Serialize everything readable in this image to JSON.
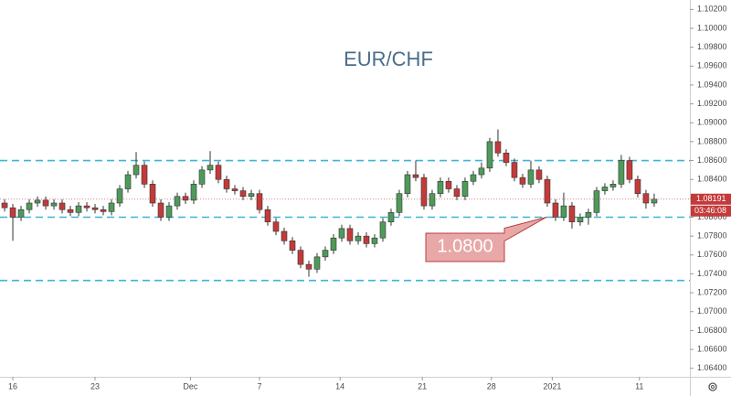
{
  "chart_data": {
    "type": "candlestick",
    "title": "EUR/CHF",
    "x": [
      -0.5,
      0,
      0.5,
      1,
      1.5,
      2,
      2.5,
      3,
      3.5,
      4,
      4.5,
      5,
      5.5,
      6,
      6.5,
      7,
      7.5,
      8,
      8.5,
      9,
      9.5,
      10,
      10.5,
      11,
      11.5,
      12,
      12.5,
      13,
      13.5,
      14,
      14.5,
      15,
      15.5,
      16,
      16.5,
      17,
      17.5,
      18,
      18.5,
      19,
      19.5,
      20,
      20.5,
      21,
      21.5,
      22,
      22.5,
      23,
      23.5,
      24,
      24.5,
      25,
      25.5,
      26,
      26.5,
      27,
      27.5,
      28,
      28.5,
      29,
      29.5,
      30,
      30.5,
      31,
      31.5,
      32,
      32.5,
      33,
      33.5,
      34,
      34.5,
      35,
      35.5,
      36,
      36.5,
      37,
      37.5,
      38,
      38.5,
      39
    ],
    "open": [
      1.0815,
      1.081,
      1.08,
      1.0808,
      1.0815,
      1.0818,
      1.0812,
      1.0815,
      1.0808,
      1.0805,
      1.0812,
      1.081,
      1.0808,
      1.0806,
      1.0815,
      1.083,
      1.0845,
      1.0855,
      1.0835,
      1.0815,
      1.08,
      1.0812,
      1.0822,
      1.0818,
      1.0835,
      1.085,
      1.0855,
      1.084,
      1.083,
      1.0828,
      1.0822,
      1.0825,
      1.0808,
      1.0795,
      1.0785,
      1.0775,
      1.0765,
      1.075,
      1.0745,
      1.0758,
      1.0765,
      1.0778,
      1.0788,
      1.0775,
      1.078,
      1.0772,
      1.0778,
      1.0795,
      1.0805,
      1.0825,
      1.0845,
      1.0842,
      1.0812,
      1.0825,
      1.0838,
      1.083,
      1.0822,
      1.0838,
      1.0845,
      1.0852,
      1.088,
      1.0868,
      1.0858,
      1.0842,
      1.0835,
      1.085,
      1.084,
      1.0815,
      1.08,
      1.0812,
      1.0795,
      1.08,
      1.0805,
      1.0828,
      1.0832,
      1.0835,
      1.086,
      1.084,
      1.0825,
      1.0815
    ],
    "high": [
      1.0819,
      1.0814,
      1.0812,
      1.0819,
      1.0822,
      1.0822,
      1.0819,
      1.0819,
      1.0812,
      1.0816,
      1.0816,
      1.0814,
      1.0812,
      1.0819,
      1.0834,
      1.0849,
      1.0869,
      1.0859,
      1.0839,
      1.0819,
      1.0816,
      1.0826,
      1.0826,
      1.0839,
      1.0854,
      1.087,
      1.0859,
      1.0844,
      1.0834,
      1.0832,
      1.0829,
      1.0829,
      1.0812,
      1.0799,
      1.0789,
      1.0779,
      1.0769,
      1.0754,
      1.0762,
      1.0769,
      1.0782,
      1.0792,
      1.0792,
      1.0784,
      1.0784,
      1.0782,
      1.0799,
      1.0809,
      1.0829,
      1.0849,
      1.086,
      1.0846,
      1.0829,
      1.0842,
      1.0842,
      1.0834,
      1.0842,
      1.0849,
      1.0858,
      1.0884,
      1.0893,
      1.0872,
      1.0862,
      1.0846,
      1.086,
      1.0854,
      1.0844,
      1.0819,
      1.0826,
      1.0816,
      1.0804,
      1.0809,
      1.0832,
      1.0836,
      1.0839,
      1.0866,
      1.0864,
      1.0844,
      1.0829,
      1.0825
    ],
    "low": [
      1.0806,
      1.0775,
      1.0796,
      1.0804,
      1.0811,
      1.0808,
      1.0808,
      1.0804,
      1.0801,
      1.0801,
      1.0806,
      1.0804,
      1.0802,
      1.0802,
      1.0811,
      1.0826,
      1.0841,
      1.0831,
      1.0811,
      1.0796,
      1.0796,
      1.0808,
      1.0814,
      1.0814,
      1.0831,
      1.0846,
      1.0836,
      1.0826,
      1.0824,
      1.0818,
      1.0818,
      1.0804,
      1.0791,
      1.0781,
      1.0771,
      1.0761,
      1.0746,
      1.0737,
      1.0741,
      1.0754,
      1.0761,
      1.0774,
      1.0771,
      1.0771,
      1.0768,
      1.0768,
      1.0774,
      1.0791,
      1.0801,
      1.0821,
      1.0838,
      1.0808,
      1.0808,
      1.0821,
      1.0826,
      1.0818,
      1.0818,
      1.0834,
      1.0841,
      1.0848,
      1.0864,
      1.0854,
      1.0838,
      1.0831,
      1.0831,
      1.0836,
      1.0811,
      1.0796,
      1.0796,
      1.0788,
      1.0791,
      1.0792,
      1.0801,
      1.0824,
      1.0828,
      1.0831,
      1.0836,
      1.0821,
      1.0809,
      1.0811
    ],
    "close": [
      1.081,
      1.08,
      1.0808,
      1.0815,
      1.0818,
      1.0812,
      1.0815,
      1.0808,
      1.0805,
      1.0812,
      1.081,
      1.0808,
      1.0806,
      1.0815,
      1.083,
      1.0845,
      1.0855,
      1.0835,
      1.0815,
      1.08,
      1.0812,
      1.0822,
      1.0818,
      1.0835,
      1.085,
      1.0855,
      1.084,
      1.083,
      1.0828,
      1.0822,
      1.0825,
      1.0808,
      1.0795,
      1.0785,
      1.0775,
      1.0765,
      1.075,
      1.0745,
      1.0758,
      1.0765,
      1.0778,
      1.0788,
      1.0775,
      1.078,
      1.0772,
      1.0778,
      1.0795,
      1.0805,
      1.0825,
      1.0845,
      1.0842,
      1.0812,
      1.0825,
      1.0838,
      1.083,
      1.0822,
      1.0838,
      1.0845,
      1.0852,
      1.088,
      1.0868,
      1.0858,
      1.0842,
      1.0835,
      1.085,
      1.084,
      1.0815,
      1.08,
      1.0812,
      1.0795,
      1.08,
      1.0805,
      1.0828,
      1.0832,
      1.0835,
      1.086,
      1.084,
      1.0825,
      1.0815,
      1.08191
    ],
    "up_color": "#4e9a5a",
    "down_color": "#c43a3a",
    "xlim": [
      -0.78,
      41.17
    ],
    "xticks": [
      {
        "value": 0,
        "label": "16"
      },
      {
        "value": 5,
        "label": "23"
      },
      {
        "value": 10.8,
        "label": "Dec"
      },
      {
        "value": 15,
        "label": "7"
      },
      {
        "value": 19.9,
        "label": "14"
      },
      {
        "value": 24.9,
        "label": "21"
      },
      {
        "value": 29.1,
        "label": "28"
      },
      {
        "value": 32.8,
        "label": "2021"
      },
      {
        "value": 38.1,
        "label": "11"
      }
    ],
    "ylim": [
      1.0631,
      1.103
    ],
    "yticks": [
      {
        "value": 1.064,
        "label": "1.06400"
      },
      {
        "value": 1.066,
        "label": "1.06600"
      },
      {
        "value": 1.068,
        "label": "1.06800"
      },
      {
        "value": 1.07,
        "label": "1.07000"
      },
      {
        "value": 1.072,
        "label": "1.07200"
      },
      {
        "value": 1.074,
        "label": "1.07400"
      },
      {
        "value": 1.076,
        "label": "1.07600"
      },
      {
        "value": 1.078,
        "label": "1.07800"
      },
      {
        "value": 1.08,
        "label": "1.08000"
      },
      {
        "value": 1.082,
        "label": "1.08200"
      },
      {
        "value": 1.084,
        "label": "1.08400"
      },
      {
        "value": 1.086,
        "label": "1.08600"
      },
      {
        "value": 1.088,
        "label": "1.08800"
      },
      {
        "value": 1.09,
        "label": "1.09000"
      },
      {
        "value": 1.092,
        "label": "1.09200"
      },
      {
        "value": 1.094,
        "label": "1.09400"
      },
      {
        "value": 1.096,
        "label": "1.09600"
      },
      {
        "value": 1.098,
        "label": "1.09800"
      },
      {
        "value": 1.1,
        "label": "1.10000"
      },
      {
        "value": 1.102,
        "label": "1.10200"
      }
    ],
    "grid": false,
    "levels": [
      1.086,
      1.08,
      1.0733
    ],
    "level_color": "#3cb4d8",
    "annotations": [
      {
        "text": "1.0800"
      }
    ],
    "current_price": {
      "value": 1.08191,
      "label": "1.08191"
    },
    "countdown": "03:46:08"
  }
}
